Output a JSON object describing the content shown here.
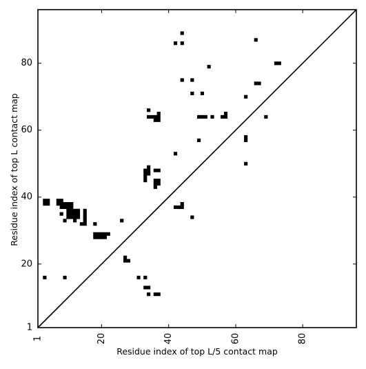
{
  "chart_data": {
    "type": "heatmap",
    "xlabel": "Residue index of top L/5 contact map",
    "ylabel": "Residue index of top L contact map",
    "xlim": [
      1,
      96
    ],
    "ylim": [
      1,
      96
    ],
    "x_ticks": [
      1,
      20,
      40,
      60,
      80
    ],
    "y_ticks": [
      1,
      20,
      40,
      60,
      80
    ],
    "x_tick_labels": [
      "1",
      "20",
      "40",
      "60",
      "80"
    ],
    "y_tick_labels": [
      "1",
      "20",
      "40",
      "60",
      "80"
    ],
    "x_tick_rotation": -90,
    "grid": false,
    "diagonal": true,
    "cell_color": "#000000",
    "background": "#ffffff",
    "points": [
      [
        44,
        89
      ],
      [
        42,
        86
      ],
      [
        44,
        86
      ],
      [
        66,
        87
      ],
      [
        52,
        79
      ],
      [
        72,
        80
      ],
      [
        73,
        80
      ],
      [
        44,
        75
      ],
      [
        47,
        75
      ],
      [
        66,
        74
      ],
      [
        67,
        74
      ],
      [
        47,
        71
      ],
      [
        50,
        71
      ],
      [
        63,
        70
      ],
      [
        34,
        66
      ],
      [
        37,
        65
      ],
      [
        57,
        65
      ],
      [
        34,
        64
      ],
      [
        35,
        64
      ],
      [
        36,
        64
      ],
      [
        37,
        64
      ],
      [
        49,
        64
      ],
      [
        50,
        64
      ],
      [
        51,
        64
      ],
      [
        53,
        64
      ],
      [
        56,
        64
      ],
      [
        57,
        64
      ],
      [
        69,
        64
      ],
      [
        36,
        63
      ],
      [
        37,
        63
      ],
      [
        63,
        58
      ],
      [
        63,
        57
      ],
      [
        49,
        57
      ],
      [
        42,
        53
      ],
      [
        63,
        50
      ],
      [
        34,
        49
      ],
      [
        33,
        48
      ],
      [
        34,
        48
      ],
      [
        36,
        48
      ],
      [
        37,
        48
      ],
      [
        33,
        47
      ],
      [
        34,
        47
      ],
      [
        33,
        46
      ],
      [
        33,
        45
      ],
      [
        36,
        45
      ],
      [
        37,
        45
      ],
      [
        36,
        44
      ],
      [
        37,
        44
      ],
      [
        36,
        43
      ],
      [
        3,
        39
      ],
      [
        4,
        39
      ],
      [
        7,
        39
      ],
      [
        8,
        39
      ],
      [
        3,
        38
      ],
      [
        4,
        38
      ],
      [
        7,
        38
      ],
      [
        8,
        38
      ],
      [
        9,
        38
      ],
      [
        10,
        38
      ],
      [
        11,
        38
      ],
      [
        44,
        38
      ],
      [
        8,
        37
      ],
      [
        9,
        37
      ],
      [
        10,
        37
      ],
      [
        11,
        37
      ],
      [
        42,
        37
      ],
      [
        43,
        37
      ],
      [
        44,
        37
      ],
      [
        10,
        36
      ],
      [
        11,
        36
      ],
      [
        12,
        36
      ],
      [
        13,
        36
      ],
      [
        15,
        36
      ],
      [
        10,
        35
      ],
      [
        11,
        35
      ],
      [
        12,
        35
      ],
      [
        13,
        35
      ],
      [
        15,
        35
      ],
      [
        8,
        35
      ],
      [
        10,
        34
      ],
      [
        11,
        34
      ],
      [
        12,
        34
      ],
      [
        13,
        34
      ],
      [
        15,
        34
      ],
      [
        47,
        34
      ],
      [
        9,
        33
      ],
      [
        12,
        33
      ],
      [
        15,
        33
      ],
      [
        26,
        33
      ],
      [
        14,
        32
      ],
      [
        15,
        32
      ],
      [
        18,
        32
      ],
      [
        18,
        29
      ],
      [
        19,
        29
      ],
      [
        20,
        29
      ],
      [
        21,
        29
      ],
      [
        22,
        29
      ],
      [
        18,
        28
      ],
      [
        19,
        28
      ],
      [
        20,
        28
      ],
      [
        21,
        28
      ],
      [
        27,
        22
      ],
      [
        27,
        21
      ],
      [
        28,
        21
      ],
      [
        3,
        16
      ],
      [
        9,
        16
      ],
      [
        31,
        16
      ],
      [
        33,
        16
      ],
      [
        33,
        13
      ],
      [
        34,
        13
      ],
      [
        34,
        11
      ],
      [
        36,
        11
      ],
      [
        37,
        11
      ]
    ]
  }
}
